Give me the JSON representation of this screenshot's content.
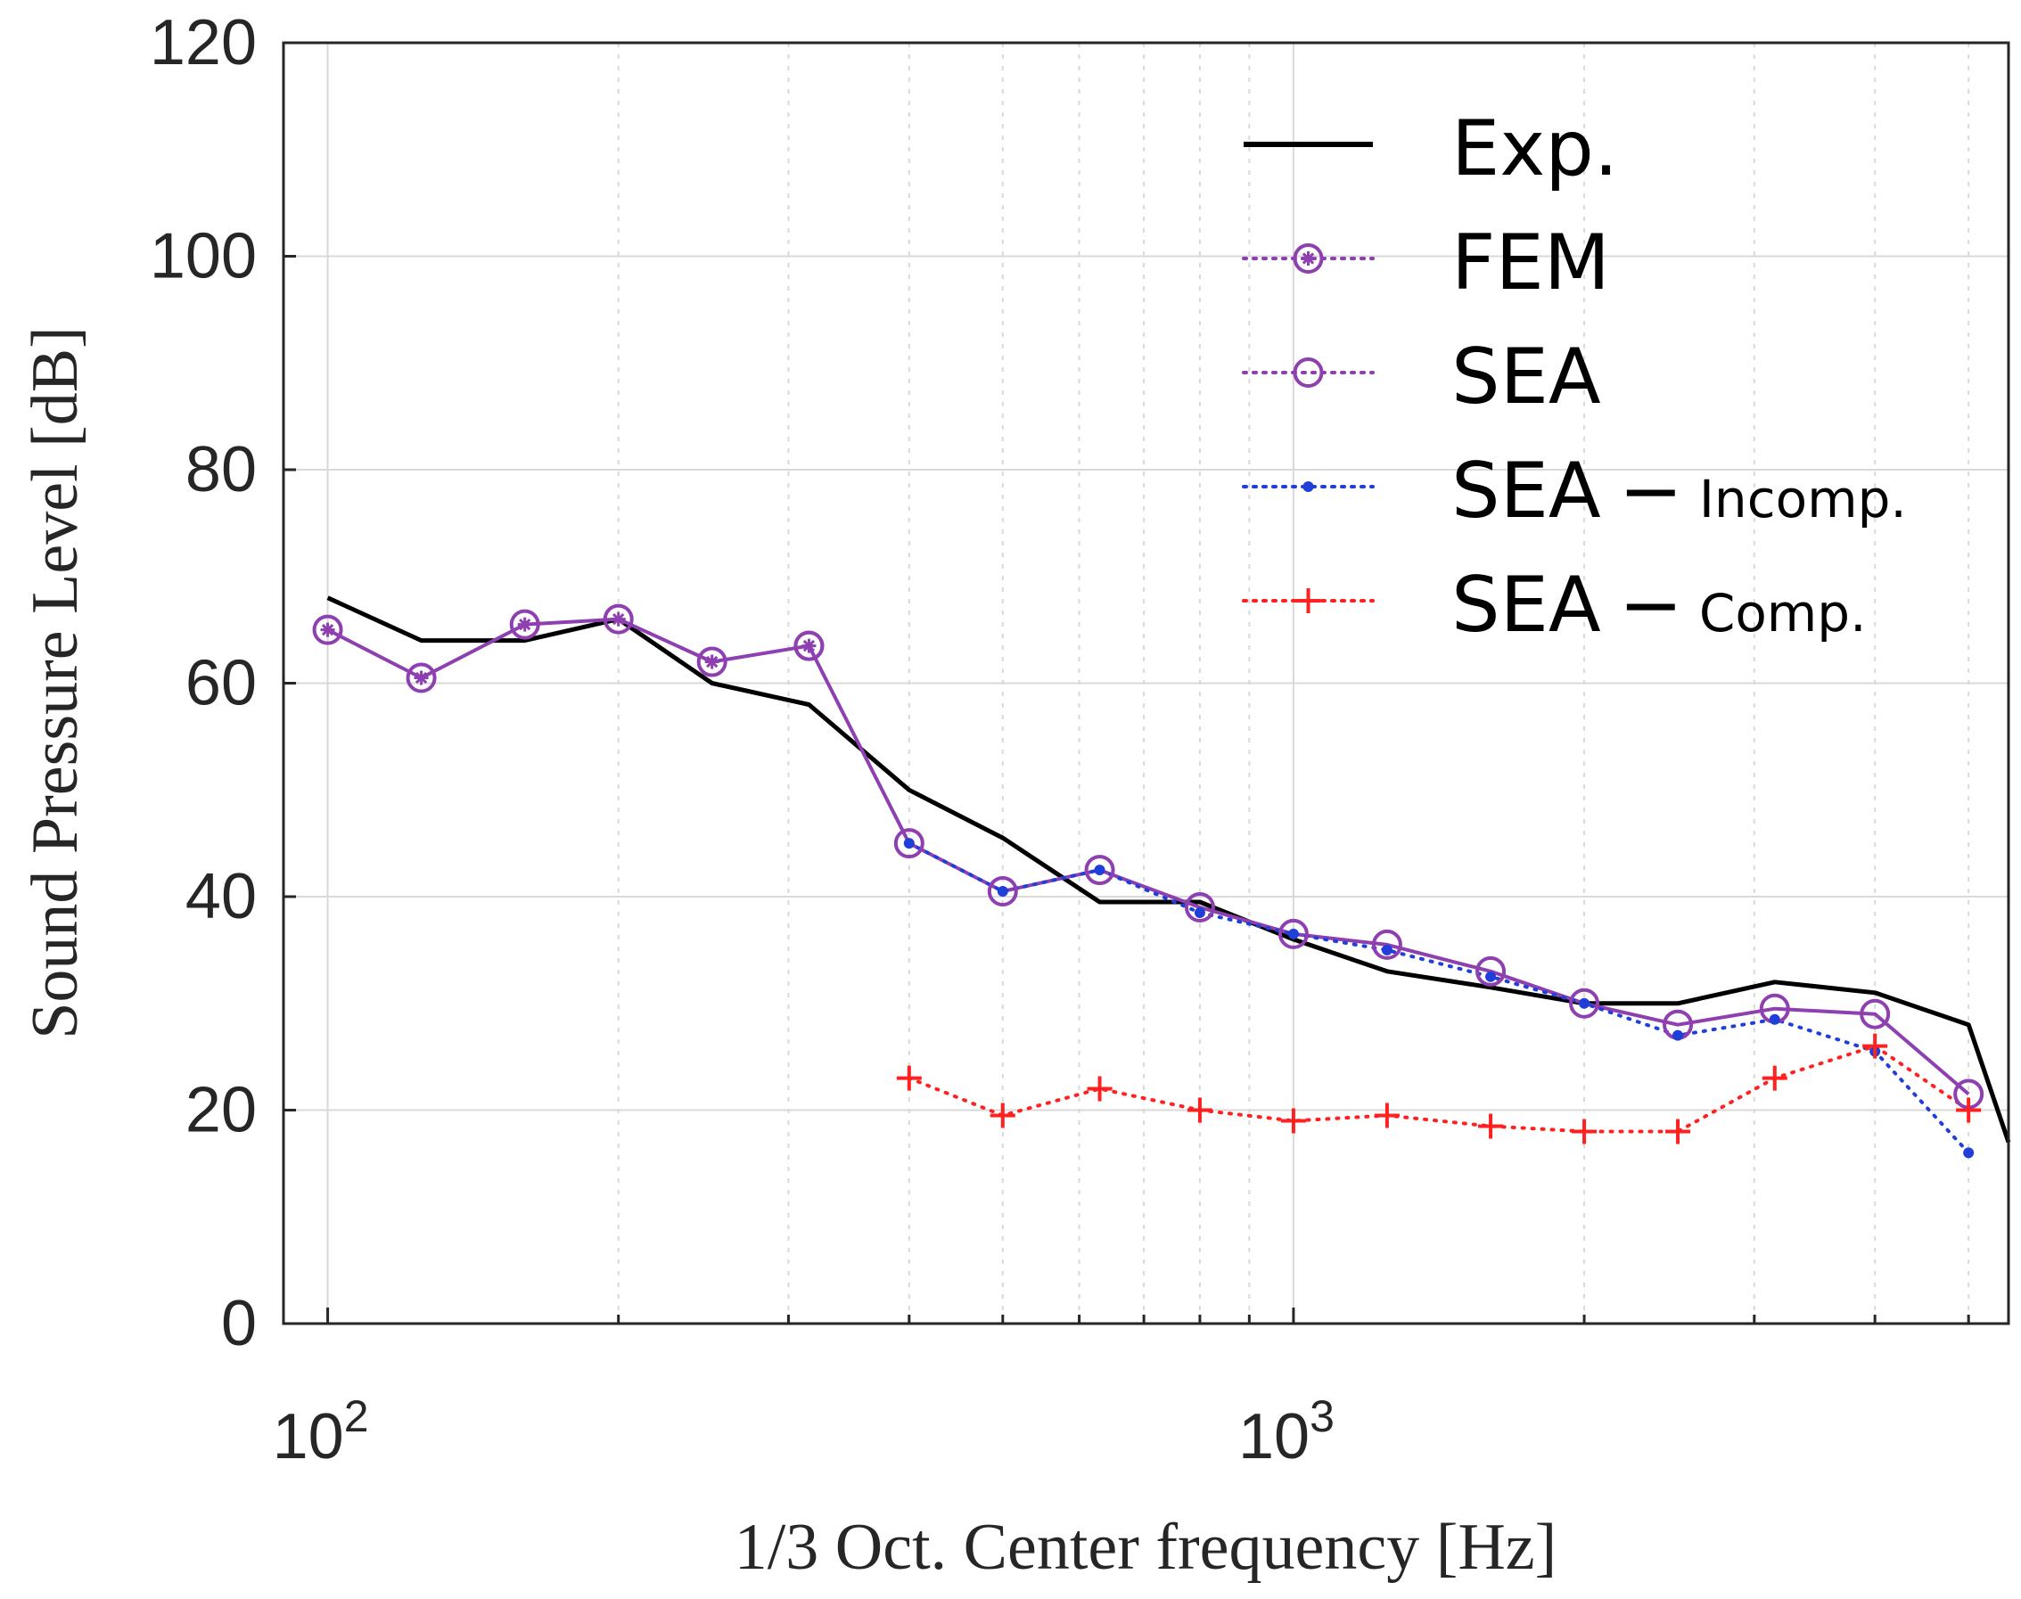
{
  "chart_data": {
    "type": "line",
    "xlabel": "1/3 Oct. Center frequency [Hz]",
    "ylabel": "Sound Pressure Level [dB]",
    "xscale": "log",
    "xlim": [
      90,
      5500
    ],
    "ylim": [
      0,
      120
    ],
    "yticks": [
      0,
      20,
      40,
      60,
      80,
      100,
      120
    ],
    "xticks": [
      {
        "value": 100,
        "base": "10",
        "exp": "2"
      },
      {
        "value": 1000,
        "base": "10",
        "exp": "3"
      }
    ],
    "grid": true,
    "legend_position": "top-right",
    "series": [
      {
        "name": "Exp.",
        "style": "solid",
        "marker": "none",
        "color": "#000000",
        "x": [
          100,
          125,
          160,
          200,
          250,
          315,
          400,
          500,
          630,
          800,
          1000,
          1250,
          1600,
          2000,
          2500,
          3150,
          4000,
          5000,
          5500
        ],
        "y": [
          68,
          64,
          64,
          66,
          60,
          58,
          50,
          45.5,
          39.5,
          39.5,
          36,
          33,
          31.5,
          30,
          30,
          32,
          31,
          28,
          17
        ]
      },
      {
        "name": "FEM",
        "style": "solid",
        "marker": "circle-star",
        "color": "#8e3fb0",
        "x": [
          100,
          125,
          160,
          200,
          250,
          315
        ],
        "y": [
          65,
          60.5,
          65.5,
          66,
          62,
          63.5
        ]
      },
      {
        "name": "SEA",
        "style": "solid",
        "marker": "circle",
        "color": "#8e3fb0",
        "x": [
          315,
          400,
          500,
          630,
          800,
          1000,
          1250,
          1600,
          2000,
          2500,
          3150,
          4000,
          5000
        ],
        "y": [
          63.5,
          45,
          40.5,
          42.5,
          39,
          36.5,
          35.5,
          33,
          30,
          28,
          29.5,
          29,
          21.5
        ]
      },
      {
        "name": "SEA",
        "sub": "− Incomp.",
        "style": "dotted",
        "marker": "dot",
        "color": "#1f3fd8",
        "x": [
          400,
          500,
          630,
          800,
          1000,
          1250,
          1600,
          2000,
          2500,
          3150,
          4000,
          5000
        ],
        "y": [
          45,
          40.5,
          42.5,
          38.5,
          36.5,
          35,
          32.5,
          30,
          27,
          28.5,
          25.5,
          16
        ]
      },
      {
        "name": "SEA",
        "sub": "− Comp.",
        "style": "dotted",
        "marker": "plus",
        "color": "#ff2020",
        "x": [
          400,
          500,
          630,
          800,
          1000,
          1250,
          1600,
          2000,
          2500,
          3150,
          4000,
          5000
        ],
        "y": [
          23,
          19.5,
          22,
          20,
          19,
          19.5,
          18.5,
          18,
          18,
          23,
          26,
          20
        ]
      }
    ]
  }
}
